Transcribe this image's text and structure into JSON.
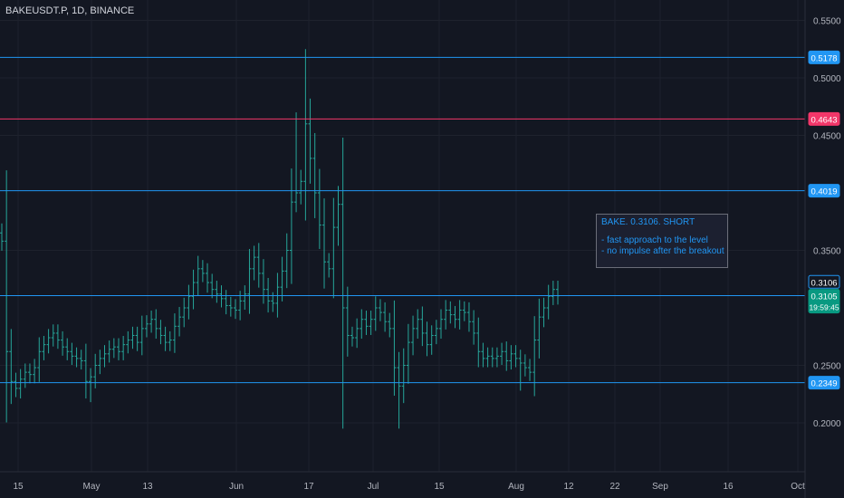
{
  "header": {
    "symbol_line": "BAKEUSDT.P, 1D, BINANCE"
  },
  "annotation": {
    "title": "BAKE. 0.3106. SHORT",
    "lines": [
      "- fast approach to the level",
      "- no impulse after the breakout"
    ]
  },
  "chart_data": {
    "type": "bar",
    "subtype": "ohlc-price-chart",
    "ylim": [
      0.17,
      0.56
    ],
    "y_ticks": [
      "0.5500",
      "0.5000",
      "0.4500",
      "0.3500",
      "0.2500",
      "0.2000"
    ],
    "x_ticks": [
      "15",
      "May",
      "13",
      "Jun",
      "17",
      "Jul",
      "15",
      "Aug",
      "12",
      "22",
      "Sep",
      "16",
      "Oct"
    ],
    "levels": [
      {
        "value": 0.5178,
        "label": "0.5178",
        "color": "#2196f3"
      },
      {
        "value": 0.4643,
        "label": "0.4643",
        "color": "#f23669"
      },
      {
        "value": 0.4019,
        "label": "0.4019",
        "color": "#2196f3"
      },
      {
        "value": 0.3106,
        "label": "0.3106",
        "color": "#2196f3",
        "badge_style": "outline"
      },
      {
        "value": 0.2349,
        "label": "0.2349",
        "color": "#2196f3"
      }
    ],
    "last_price": {
      "value": 0.3105,
      "label": "0.3105",
      "countdown": "19:59:45",
      "color": "#089981"
    },
    "candle_color": "#26a69a",
    "closes": [
      0.358,
      0.262,
      0.236,
      0.23,
      0.238,
      0.244,
      0.242,
      0.248,
      0.262,
      0.268,
      0.274,
      0.278,
      0.272,
      0.266,
      0.262,
      0.258,
      0.256,
      0.254,
      0.236,
      0.24,
      0.25,
      0.256,
      0.26,
      0.264,
      0.266,
      0.262,
      0.268,
      0.272,
      0.276,
      0.27,
      0.282,
      0.286,
      0.29,
      0.282,
      0.276,
      0.27,
      0.272,
      0.284,
      0.292,
      0.3,
      0.31,
      0.322,
      0.334,
      0.33,
      0.322,
      0.316,
      0.312,
      0.308,
      0.302,
      0.3,
      0.298,
      0.306,
      0.312,
      0.334,
      0.344,
      0.33,
      0.316,
      0.306,
      0.304,
      0.318,
      0.332,
      0.35,
      0.392,
      0.4,
      0.41,
      0.46,
      0.43,
      0.4,
      0.372,
      0.34,
      0.334,
      0.37,
      0.39,
      0.3,
      0.276,
      0.274,
      0.282,
      0.29,
      0.284,
      0.29,
      0.3,
      0.296,
      0.288,
      0.282,
      0.248,
      0.232,
      0.25,
      0.27,
      0.282,
      0.29,
      0.278,
      0.268,
      0.276,
      0.282,
      0.29,
      0.298,
      0.294,
      0.29,
      0.298,
      0.296,
      0.288,
      0.278,
      0.262,
      0.256,
      0.258,
      0.256,
      0.258,
      0.262,
      0.254,
      0.26,
      0.256,
      0.252,
      0.248,
      0.244,
      0.272,
      0.292,
      0.3,
      0.31,
      0.316,
      0.3105
    ]
  }
}
